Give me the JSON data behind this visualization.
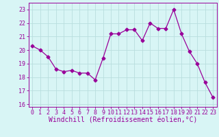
{
  "x": [
    0,
    1,
    2,
    3,
    4,
    5,
    6,
    7,
    8,
    9,
    10,
    11,
    12,
    13,
    14,
    15,
    16,
    17,
    18,
    19,
    20,
    21,
    22,
    23
  ],
  "y": [
    20.3,
    20.0,
    19.5,
    18.6,
    18.4,
    18.5,
    18.3,
    18.3,
    17.8,
    19.4,
    21.2,
    21.2,
    21.5,
    21.5,
    20.7,
    22.0,
    21.6,
    21.6,
    23.0,
    21.2,
    19.9,
    19.0,
    17.6,
    16.5
  ],
  "line_color": "#990099",
  "marker": "D",
  "marker_size": 2.5,
  "bg_color": "#d8f5f5",
  "grid_color": "#b8dede",
  "xlabel": "Windchill (Refroidissement éolien,°C)",
  "xlabel_fontsize": 7,
  "tick_fontsize": 6,
  "ylim": [
    15.8,
    23.5
  ],
  "yticks": [
    16,
    17,
    18,
    19,
    20,
    21,
    22,
    23
  ],
  "xlim": [
    -0.5,
    23.5
  ],
  "xticks": [
    0,
    1,
    2,
    3,
    4,
    5,
    6,
    7,
    8,
    9,
    10,
    11,
    12,
    13,
    14,
    15,
    16,
    17,
    18,
    19,
    20,
    21,
    22,
    23
  ]
}
